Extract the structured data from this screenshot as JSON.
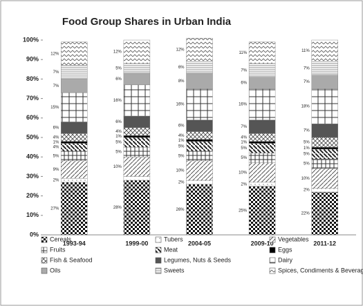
{
  "chart_data": {
    "type": "stacked-bar",
    "title": "Food Group Shares in Urban India",
    "categories": [
      "1993-94",
      "1999-00",
      "2004-05",
      "2009-10",
      "2011-12"
    ],
    "ylim": [
      0,
      100
    ],
    "yticks": [
      {
        "value": 0,
        "label": "0%"
      },
      {
        "value": 10,
        "label": "10%"
      },
      {
        "value": 20,
        "label": "20%"
      },
      {
        "value": 30,
        "label": "30%"
      },
      {
        "value": 40,
        "label": "40%"
      },
      {
        "value": 50,
        "label": "50%"
      },
      {
        "value": 60,
        "label": "60%"
      },
      {
        "value": 70,
        "label": "70%"
      },
      {
        "value": 80,
        "label": "80%"
      },
      {
        "value": 90,
        "label": "90%"
      },
      {
        "value": 100,
        "label": "100%"
      }
    ],
    "grid": false,
    "series": [
      {
        "name": "Cereals",
        "color": "#111111",
        "values": [
          27,
          28,
          26,
          25,
          22
        ],
        "value_labels": [
          "27%",
          "28%",
          "26%",
          "25%",
          "22%"
        ]
      },
      {
        "name": "Tubers",
        "color": "#888888",
        "values": [
          2,
          2,
          2,
          2,
          2
        ],
        "value_labels": [
          "2%",
          null,
          "2%",
          "2%",
          "2%"
        ]
      },
      {
        "name": "Vegetables",
        "color": "#555555",
        "values": [
          9,
          10,
          10,
          10,
          10
        ],
        "value_labels": [
          "9%",
          "10%",
          "10%",
          "10%",
          "10%"
        ]
      },
      {
        "name": "Fruits",
        "color": "#333333",
        "values": [
          5,
          5,
          5,
          5,
          5
        ],
        "value_labels": [
          "5%",
          "5%",
          "5%",
          "5%",
          "5%"
        ]
      },
      {
        "name": "Meat",
        "color": "#222222",
        "values": [
          4,
          5,
          5,
          5,
          5
        ],
        "value_labels": [
          "4%",
          "5%",
          "5%",
          "5%",
          "5%"
        ]
      },
      {
        "name": "Eggs",
        "color": "#000000",
        "values": [
          1,
          1,
          1,
          1,
          1
        ],
        "value_labels": [
          "1%",
          "1%",
          "1%",
          "1%",
          "1%"
        ]
      },
      {
        "name": "Fish & Seafood",
        "color": "#444444",
        "values": [
          4,
          4,
          4,
          4,
          5
        ],
        "value_labels": [
          "4%",
          "4%",
          "4%",
          "4%",
          "5%"
        ]
      },
      {
        "name": "Legumes, Nuts & Seeds",
        "color": "#555555",
        "values": [
          6,
          6,
          6,
          7,
          7
        ],
        "value_labels": [
          "6%",
          "6%",
          "6%",
          "7%",
          "7%"
        ]
      },
      {
        "name": "Dairy",
        "color": "#333333",
        "values": [
          15,
          16,
          16,
          16,
          18
        ],
        "value_labels": [
          "15%",
          "16%",
          "16%",
          "16%",
          "18%"
        ]
      },
      {
        "name": "Oils",
        "color": "#aaaaaa",
        "values": [
          7,
          6,
          8,
          6,
          7
        ],
        "value_labels": [
          "7%",
          "6%",
          "8%",
          "6%",
          "7%"
        ]
      },
      {
        "name": "Sweets",
        "color": "#666666",
        "values": [
          7,
          5,
          6,
          7,
          7
        ],
        "value_labels": [
          "7%",
          "5%",
          "6%",
          "7%",
          "7%"
        ]
      },
      {
        "name": "Spices, Condiments & Beverages",
        "color": "#555555",
        "values": [
          12,
          12,
          12,
          11,
          11
        ],
        "value_labels": [
          "12%",
          "12%",
          "12%",
          "11%",
          "11%"
        ]
      }
    ]
  }
}
